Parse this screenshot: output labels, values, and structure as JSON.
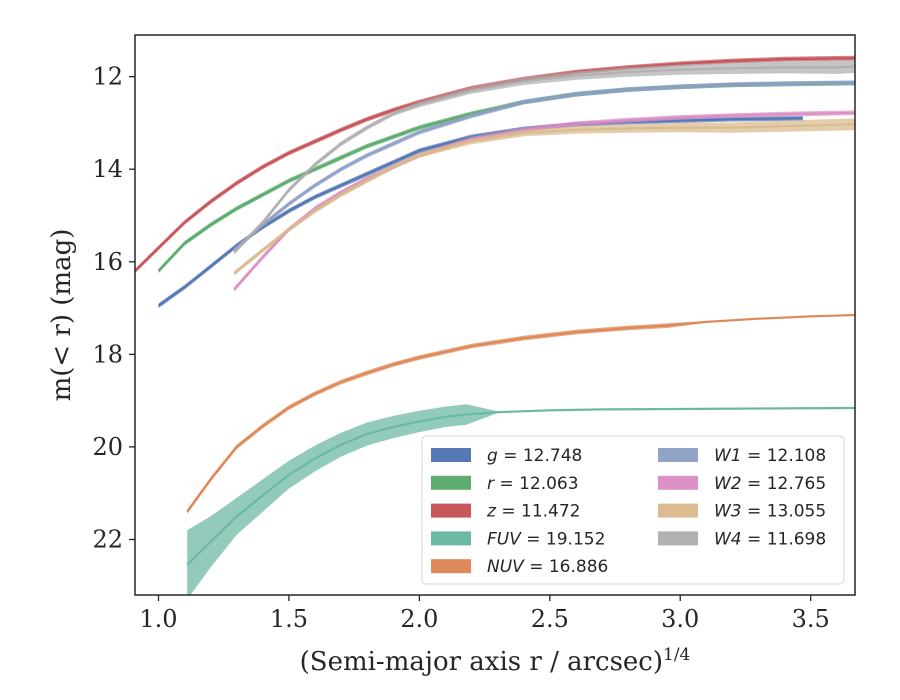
{
  "chart_data": {
    "type": "line",
    "xlabel": "(Semi-major axis r / arcsec)",
    "xlabel_sup": "1/4",
    "ylabel": "m(< r) (mag)",
    "xlim": [
      0.91,
      3.67
    ],
    "ylim": [
      23.2,
      11.1
    ],
    "y_inverted": true,
    "grid": false,
    "legend_placement": "lower-right",
    "x_ticks": [
      1.0,
      1.5,
      2.0,
      2.5,
      3.0,
      3.5
    ],
    "x_tick_labels": [
      "1.0",
      "1.5",
      "2.0",
      "2.5",
      "3.0",
      "3.5"
    ],
    "y_ticks": [
      12,
      14,
      16,
      18,
      20,
      22
    ],
    "y_tick_labels": [
      "12",
      "14",
      "16",
      "18",
      "20",
      "22"
    ],
    "series": [
      {
        "name": "g = 12.748",
        "legend_var": "g",
        "legend_val": "12.748",
        "color": "#4C72B0",
        "x": [
          1.0,
          1.1,
          1.2,
          1.3,
          1.4,
          1.5,
          1.6,
          1.7,
          1.8,
          1.9,
          2.0,
          2.2,
          2.4,
          2.6,
          2.8,
          3.0,
          3.2,
          3.47
        ],
        "y": [
          16.95,
          16.55,
          16.1,
          15.65,
          15.25,
          14.9,
          14.6,
          14.35,
          14.1,
          13.85,
          13.6,
          13.3,
          13.13,
          13.03,
          12.98,
          12.95,
          12.92,
          12.9
        ],
        "band": [
          0.05,
          0.05,
          0.05,
          0.05,
          0.05,
          0.05,
          0.05,
          0.05,
          0.05,
          0.05,
          0.05,
          0.05,
          0.05,
          0.05,
          0.05,
          0.05,
          0.05,
          0.05
        ]
      },
      {
        "name": "r = 12.063",
        "legend_var": "r",
        "legend_val": "12.063",
        "color": "#55A868",
        "x": [
          1.0,
          1.1,
          1.2,
          1.3,
          1.4,
          1.5,
          1.6,
          1.7,
          1.8,
          1.9,
          2.0,
          2.2,
          2.4,
          2.6,
          2.8,
          3.0,
          3.2,
          3.4,
          3.67
        ],
        "y": [
          16.2,
          15.6,
          15.2,
          14.85,
          14.55,
          14.25,
          14.0,
          13.75,
          13.5,
          13.3,
          13.1,
          12.8,
          12.55,
          12.38,
          12.28,
          12.22,
          12.18,
          12.16,
          12.14
        ],
        "band": [
          0.05,
          0.05,
          0.05,
          0.05,
          0.05,
          0.05,
          0.05,
          0.05,
          0.05,
          0.05,
          0.05,
          0.05,
          0.05,
          0.05,
          0.05,
          0.05,
          0.05,
          0.05,
          0.05
        ]
      },
      {
        "name": "z = 11.472",
        "legend_var": "z",
        "legend_val": "11.472",
        "color": "#C44E52",
        "x": [
          0.91,
          1.0,
          1.1,
          1.2,
          1.3,
          1.4,
          1.5,
          1.6,
          1.7,
          1.8,
          1.9,
          2.0,
          2.2,
          2.4,
          2.6,
          2.8,
          3.0,
          3.2,
          3.4,
          3.67
        ],
        "y": [
          16.2,
          15.7,
          15.15,
          14.7,
          14.3,
          13.95,
          13.65,
          13.4,
          13.15,
          12.92,
          12.72,
          12.55,
          12.25,
          12.05,
          11.9,
          11.8,
          11.72,
          11.66,
          11.62,
          11.6
        ],
        "band": [
          0.05,
          0.05,
          0.05,
          0.05,
          0.05,
          0.05,
          0.05,
          0.05,
          0.05,
          0.05,
          0.05,
          0.05,
          0.05,
          0.05,
          0.05,
          0.05,
          0.05,
          0.05,
          0.05,
          0.05
        ]
      },
      {
        "name": "FUV = 19.152",
        "legend_var": "FUV",
        "legend_val": "19.152",
        "color": "#64B5A0",
        "x": [
          1.11,
          1.2,
          1.3,
          1.4,
          1.5,
          1.6,
          1.7,
          1.8,
          1.9,
          2.0,
          2.1,
          2.18,
          2.3,
          2.5,
          2.7,
          3.0,
          3.3,
          3.67
        ],
        "y": [
          22.55,
          22.05,
          21.5,
          21.05,
          20.6,
          20.25,
          19.95,
          19.72,
          19.57,
          19.45,
          19.35,
          19.3,
          19.25,
          19.21,
          19.19,
          19.18,
          19.17,
          19.16
        ],
        "band": [
          0.75,
          0.55,
          0.4,
          0.35,
          0.3,
          0.28,
          0.26,
          0.25,
          0.24,
          0.23,
          0.22,
          0.22,
          0.02,
          0.02,
          0.02,
          0.02,
          0.02,
          0.02
        ]
      },
      {
        "name": "NUV = 16.886",
        "legend_var": "NUV",
        "legend_val": "16.886",
        "color": "#DD8452",
        "x": [
          1.11,
          1.2,
          1.3,
          1.4,
          1.5,
          1.6,
          1.7,
          1.8,
          1.9,
          2.0,
          2.2,
          2.4,
          2.6,
          2.8,
          2.95,
          3.1,
          3.3,
          3.5,
          3.67
        ],
        "y": [
          21.4,
          20.7,
          20.0,
          19.55,
          19.15,
          18.85,
          18.6,
          18.4,
          18.22,
          18.07,
          17.82,
          17.65,
          17.52,
          17.43,
          17.38,
          17.3,
          17.23,
          17.18,
          17.15
        ],
        "band": [
          0.05,
          0.05,
          0.05,
          0.05,
          0.05,
          0.05,
          0.05,
          0.05,
          0.05,
          0.05,
          0.05,
          0.05,
          0.05,
          0.05,
          0.05,
          0.02,
          0.02,
          0.02,
          0.02
        ]
      },
      {
        "name": "W1 = 12.108",
        "legend_var": "W1",
        "legend_val": "12.108",
        "color": "#8C9EC5",
        "x": [
          1.29,
          1.4,
          1.5,
          1.6,
          1.7,
          1.8,
          1.9,
          2.0,
          2.2,
          2.4,
          2.6,
          2.8,
          3.0,
          3.2,
          3.4,
          3.67
        ],
        "y": [
          15.75,
          15.2,
          14.75,
          14.35,
          14.0,
          13.7,
          13.45,
          13.2,
          12.85,
          12.55,
          12.38,
          12.28,
          12.22,
          12.17,
          12.15,
          12.13
        ],
        "band": [
          0.05,
          0.05,
          0.05,
          0.05,
          0.05,
          0.05,
          0.05,
          0.05,
          0.05,
          0.05,
          0.05,
          0.05,
          0.05,
          0.05,
          0.05,
          0.05
        ]
      },
      {
        "name": "W2 = 12.765",
        "legend_var": "W2",
        "legend_val": "12.765",
        "color": "#DA8BC3",
        "x": [
          1.29,
          1.4,
          1.5,
          1.6,
          1.7,
          1.8,
          1.9,
          2.0,
          2.2,
          2.4,
          2.6,
          2.8,
          3.0,
          3.2,
          3.4,
          3.67
        ],
        "y": [
          16.6,
          15.9,
          15.3,
          14.85,
          14.5,
          14.2,
          13.95,
          13.7,
          13.35,
          13.15,
          13.02,
          12.94,
          12.88,
          12.84,
          12.81,
          12.78
        ],
        "band": [
          0.05,
          0.05,
          0.05,
          0.05,
          0.05,
          0.05,
          0.05,
          0.05,
          0.05,
          0.05,
          0.05,
          0.05,
          0.05,
          0.05,
          0.05,
          0.05
        ]
      },
      {
        "name": "W3 = 13.055",
        "legend_var": "W3",
        "legend_val": "13.055",
        "color": "#D9B88A",
        "x": [
          1.29,
          1.4,
          1.5,
          1.6,
          1.7,
          1.8,
          1.9,
          2.0,
          2.2,
          2.4,
          2.6,
          2.8,
          3.0,
          3.2,
          3.4,
          3.67
        ],
        "y": [
          16.25,
          15.75,
          15.3,
          14.9,
          14.55,
          14.25,
          13.95,
          13.7,
          13.4,
          13.22,
          13.15,
          13.12,
          13.1,
          13.1,
          13.07,
          13.03
        ],
        "band": [
          0.05,
          0.05,
          0.05,
          0.05,
          0.05,
          0.05,
          0.05,
          0.05,
          0.06,
          0.07,
          0.08,
          0.09,
          0.1,
          0.11,
          0.12,
          0.13
        ]
      },
      {
        "name": "W4 = 11.698",
        "legend_var": "W4",
        "legend_val": "11.698",
        "color": "#ADADAD",
        "x": [
          1.29,
          1.4,
          1.5,
          1.6,
          1.7,
          1.8,
          1.9,
          2.0,
          2.2,
          2.4,
          2.6,
          2.8,
          3.0,
          3.2,
          3.4,
          3.6,
          3.67
        ],
        "y": [
          15.8,
          15.15,
          14.45,
          13.9,
          13.45,
          13.1,
          12.8,
          12.6,
          12.3,
          12.1,
          11.98,
          11.9,
          11.85,
          11.82,
          11.8,
          11.8,
          11.78
        ],
        "band": [
          0.05,
          0.05,
          0.05,
          0.05,
          0.05,
          0.05,
          0.05,
          0.06,
          0.07,
          0.08,
          0.09,
          0.1,
          0.11,
          0.12,
          0.13,
          0.14,
          0.14
        ]
      }
    ]
  }
}
